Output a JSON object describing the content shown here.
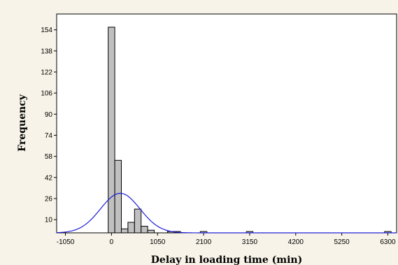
{
  "chart_data": {
    "type": "bar",
    "title": "",
    "xlabel": "Delay in loading time (min)",
    "ylabel": "Frequency",
    "xlim": [
      -1250,
      6500
    ],
    "ylim": [
      0,
      166
    ],
    "x_ticks": [
      -1050,
      0,
      1050,
      2100,
      3150,
      4200,
      5250,
      6300
    ],
    "y_ticks": [
      10,
      26,
      42,
      58,
      74,
      90,
      106,
      122,
      138,
      154
    ],
    "bin_width": 150,
    "bins": [
      {
        "x": 0,
        "value": 156
      },
      {
        "x": 150,
        "value": 55
      },
      {
        "x": 300,
        "value": 3
      },
      {
        "x": 450,
        "value": 8
      },
      {
        "x": 600,
        "value": 18
      },
      {
        "x": 750,
        "value": 5
      },
      {
        "x": 900,
        "value": 2
      },
      {
        "x": 1350,
        "value": 1
      },
      {
        "x": 1500,
        "value": 1
      },
      {
        "x": 2100,
        "value": 1
      },
      {
        "x": 3150,
        "value": 1
      },
      {
        "x": 6300,
        "value": 1
      }
    ],
    "fit_curve": {
      "type": "normal",
      "mean": 200,
      "sd": 450,
      "peak": 30,
      "color": "#1f1fd6"
    },
    "bar_fill": "#c0c0c0",
    "bar_stroke": "#000000",
    "grid": false,
    "legend": "none"
  }
}
